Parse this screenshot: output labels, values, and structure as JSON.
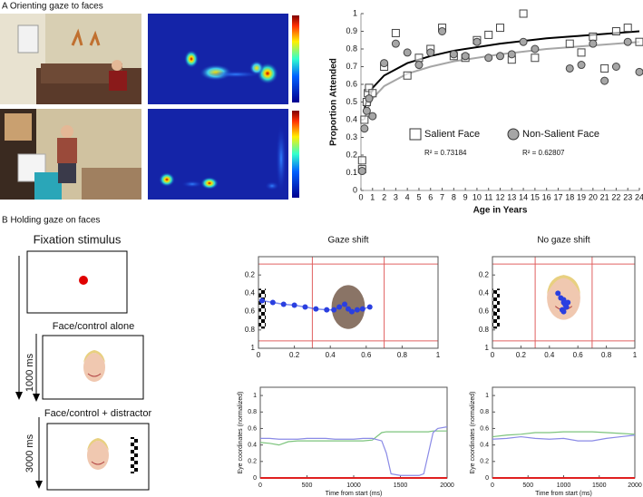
{
  "panel_a": {
    "label": "A Orienting gaze to faces"
  },
  "panel_b": {
    "label": "B Holding gaze on faces",
    "steps": [
      {
        "title": "Fixation stimulus"
      },
      {
        "title": "Face/control alone",
        "duration": "1000 ms"
      },
      {
        "title": "Face/control + distractor",
        "duration": "3000 ms"
      }
    ]
  },
  "chart_data": [
    {
      "type": "scatter",
      "xlabel": "Age in Years",
      "ylabel": "Proportion Attended",
      "xlim": [
        0,
        24
      ],
      "ylim": [
        0,
        1
      ],
      "xticks": [
        0,
        1,
        2,
        3,
        4,
        5,
        6,
        7,
        8,
        9,
        10,
        11,
        12,
        13,
        14,
        15,
        16,
        17,
        18,
        19,
        20,
        21,
        22,
        23,
        24
      ],
      "yticks": [
        0,
        0.1,
        0.2,
        0.3,
        0.4,
        0.5,
        0.6,
        0.7,
        0.8,
        0.9,
        1
      ],
      "series": [
        {
          "name": "Salient Face",
          "color": "#ffffff",
          "marker": "square",
          "x": [
            0.1,
            0.1,
            0.3,
            0.5,
            0.6,
            0.7,
            1,
            2,
            3,
            4,
            5,
            6,
            7,
            8,
            9,
            10,
            11,
            12,
            13,
            14,
            15,
            18,
            19,
            20,
            21,
            22,
            23,
            24
          ],
          "values": [
            0.17,
            0.12,
            0.4,
            0.5,
            0.55,
            0.58,
            0.55,
            0.7,
            0.89,
            0.65,
            0.75,
            0.8,
            0.92,
            0.76,
            0.75,
            0.85,
            0.88,
            0.92,
            0.74,
            1,
            0.75,
            0.83,
            0.78,
            0.87,
            0.69,
            0.9,
            0.92,
            0.84
          ]
        },
        {
          "name": "Non-Salient Face",
          "color": "#a6a6a6",
          "marker": "circle",
          "x": [
            0.1,
            0.3,
            0.5,
            0.7,
            1,
            2,
            3,
            4,
            5,
            6,
            7,
            8,
            9,
            10,
            11,
            12,
            13,
            14,
            15,
            18,
            19,
            20,
            21,
            22,
            23,
            24
          ],
          "values": [
            0.11,
            0.35,
            0.45,
            0.52,
            0.42,
            0.72,
            0.83,
            0.78,
            0.71,
            0.78,
            0.9,
            0.77,
            0.76,
            0.84,
            0.75,
            0.76,
            0.77,
            0.84,
            0.8,
            0.69,
            0.71,
            0.83,
            0.62,
            0.7,
            0.84,
            0.67
          ]
        }
      ],
      "fit_lines": [
        {
          "color": "#000000",
          "x": [
            0.3,
            0.5,
            1,
            2,
            4,
            6,
            8,
            12,
            16,
            20,
            24
          ],
          "values": [
            0.46,
            0.51,
            0.58,
            0.65,
            0.72,
            0.76,
            0.79,
            0.83,
            0.86,
            0.88,
            0.9
          ]
        },
        {
          "color": "#a6a6a6",
          "x": [
            0.3,
            0.5,
            1,
            2,
            4,
            6,
            8,
            12,
            16,
            20,
            24
          ],
          "values": [
            0.4,
            0.45,
            0.52,
            0.59,
            0.66,
            0.7,
            0.73,
            0.77,
            0.8,
            0.82,
            0.84
          ]
        }
      ],
      "annotations": [
        "R² = 0.73184",
        "R² = 0.62807"
      ]
    },
    {
      "type": "trace",
      "title": "Gaze shift",
      "xlim": [
        0,
        1
      ],
      "ylim": [
        0,
        1
      ],
      "y_inverted": true,
      "xticks": [
        0,
        0.2,
        0.4,
        0.6,
        0.8,
        1
      ],
      "yticks": [
        0.2,
        0.4,
        0.6,
        0.8,
        1
      ],
      "regions": {
        "color": "#e06060",
        "x": [
          0.3,
          0.7
        ],
        "y": [
          0.08,
          0.92
        ]
      },
      "series": [
        {
          "color": "#2a3fe0",
          "x": [
            0.02,
            0.08,
            0.14,
            0.2,
            0.26,
            0.32,
            0.38,
            0.42,
            0.45,
            0.48,
            0.5,
            0.52,
            0.55,
            0.58,
            0.62
          ],
          "values": [
            0.48,
            0.5,
            0.52,
            0.53,
            0.55,
            0.57,
            0.58,
            0.58,
            0.55,
            0.52,
            0.57,
            0.6,
            0.58,
            0.57,
            0.55
          ]
        }
      ]
    },
    {
      "type": "trace",
      "title": "No gaze shift",
      "xlim": [
        0,
        1
      ],
      "ylim": [
        0,
        1
      ],
      "y_inverted": true,
      "xticks": [
        0,
        0.2,
        0.4,
        0.6,
        0.8,
        1
      ],
      "yticks": [
        0.2,
        0.4,
        0.6,
        0.8,
        1
      ],
      "regions": {
        "color": "#e06060",
        "x": [
          0.3,
          0.7
        ],
        "y": [
          0.08,
          0.92
        ]
      },
      "series": [
        {
          "color": "#2a3fe0",
          "x": [
            0.46,
            0.48,
            0.5,
            0.52,
            0.5,
            0.49,
            0.51,
            0.53,
            0.5
          ],
          "values": [
            0.4,
            0.45,
            0.5,
            0.55,
            0.6,
            0.58,
            0.52,
            0.5,
            0.47
          ]
        }
      ]
    },
    {
      "type": "line",
      "xlabel": "Time from start (ms)",
      "ylabel": "Eye coordinates (normalized)",
      "xlim": [
        0,
        2000
      ],
      "ylim": [
        0,
        1.1
      ],
      "xticks": [
        0,
        500,
        1000,
        1500,
        2000
      ],
      "yticks": [
        0,
        0.2,
        0.4,
        0.6,
        0.8,
        1
      ],
      "x": [
        0,
        100,
        200,
        300,
        400,
        500,
        600,
        700,
        800,
        900,
        1000,
        1100,
        1200,
        1300,
        1350,
        1400,
        1500,
        1600,
        1700,
        1750,
        1800,
        1850,
        1900,
        2000
      ],
      "series": [
        {
          "color": "#7cc47c",
          "values": [
            0.43,
            0.42,
            0.4,
            0.44,
            0.45,
            0.45,
            0.45,
            0.45,
            0.45,
            0.45,
            0.45,
            0.45,
            0.46,
            0.55,
            0.56,
            0.56,
            0.56,
            0.56,
            0.56,
            0.56,
            0.56,
            0.57,
            0.57,
            0.57
          ]
        },
        {
          "color": "#8a8ae6",
          "values": [
            0.48,
            0.48,
            0.47,
            0.47,
            0.47,
            0.48,
            0.48,
            0.48,
            0.47,
            0.47,
            0.47,
            0.48,
            0.48,
            0.45,
            0.3,
            0.05,
            0.03,
            0.03,
            0.03,
            0.05,
            0.3,
            0.55,
            0.6,
            0.62
          ]
        },
        {
          "color": "#e02020",
          "values": [
            0,
            0,
            0,
            0,
            0,
            0,
            0,
            0,
            0,
            0,
            0,
            0,
            0,
            0,
            0,
            0,
            0,
            0,
            0,
            0,
            0,
            0,
            0,
            0
          ]
        }
      ]
    },
    {
      "type": "line",
      "xlabel": "Time from start (ms)",
      "ylabel": "Eye coordinates (normalized)",
      "xlim": [
        0,
        2000
      ],
      "ylim": [
        0,
        1.1
      ],
      "xticks": [
        0,
        500,
        1000,
        1500,
        2000
      ],
      "yticks": [
        0,
        0.2,
        0.4,
        0.6,
        0.8,
        1
      ],
      "x": [
        0,
        200,
        400,
        600,
        800,
        1000,
        1200,
        1400,
        1600,
        1800,
        2000
      ],
      "series": [
        {
          "color": "#7cc47c",
          "values": [
            0.5,
            0.52,
            0.53,
            0.55,
            0.55,
            0.56,
            0.56,
            0.56,
            0.55,
            0.54,
            0.53
          ]
        },
        {
          "color": "#8a8ae6",
          "values": [
            0.47,
            0.48,
            0.5,
            0.48,
            0.47,
            0.48,
            0.45,
            0.45,
            0.48,
            0.5,
            0.52
          ]
        },
        {
          "color": "#e02020",
          "values": [
            0,
            0,
            0,
            0,
            0,
            0,
            0,
            0,
            0,
            0,
            0
          ]
        }
      ]
    }
  ]
}
